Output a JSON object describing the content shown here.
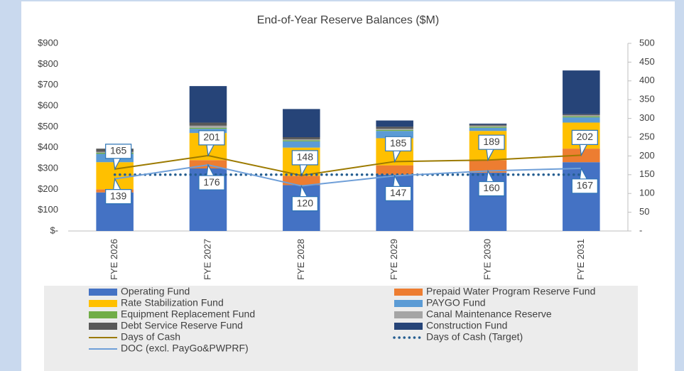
{
  "chart_data": {
    "type": "bar",
    "stacked": true,
    "title": "End-of-Year Reserve Balances ($M)",
    "categories": [
      "FYE 2026",
      "FYE 2027",
      "FYE 2028",
      "FYE 2029",
      "FYE 2030",
      "FYE 2031"
    ],
    "ylim": [
      0,
      900
    ],
    "yticks": [
      {
        "value": 0,
        "label": "$-"
      },
      {
        "value": 100,
        "label": "$100"
      },
      {
        "value": 200,
        "label": "$200"
      },
      {
        "value": 300,
        "label": "$300"
      },
      {
        "value": 400,
        "label": "$400"
      },
      {
        "value": 500,
        "label": "$500"
      },
      {
        "value": 600,
        "label": "$600"
      },
      {
        "value": 700,
        "label": "$700"
      },
      {
        "value": 800,
        "label": "$800"
      },
      {
        "value": 900,
        "label": "$900"
      }
    ],
    "y2lim": [
      0,
      500
    ],
    "y2ticks": [
      {
        "value": 0,
        "label": "-"
      },
      50,
      100,
      150,
      200,
      250,
      300,
      350,
      400,
      450,
      500
    ],
    "grid": false,
    "legend": "bottom",
    "series": [
      {
        "name": "Operating Fund",
        "color": "#4472c4",
        "values": [
          185,
          300,
          220,
          270,
          280,
          330
        ]
      },
      {
        "name": "Prepaid Water Program Reserve Fund",
        "color": "#ed7d31",
        "values": [
          15,
          40,
          45,
          45,
          60,
          65
        ]
      },
      {
        "name": "Rate Stabilization Fund",
        "color": "#ffc000",
        "values": [
          130,
          130,
          135,
          130,
          140,
          125
        ]
      },
      {
        "name": "PAYGO Fund",
        "color": "#5b9bd5",
        "values": [
          40,
          20,
          30,
          35,
          15,
          25
        ]
      },
      {
        "name": "Equipment Replacement Fund",
        "color": "#70ad47",
        "values": [
          5,
          5,
          5,
          5,
          5,
          5
        ]
      },
      {
        "name": "Canal Maintenance Reserve",
        "color": "#a5a5a5",
        "values": [
          5,
          10,
          5,
          5,
          5,
          5
        ]
      },
      {
        "name": "Debt Service Reserve Fund",
        "color": "#595959",
        "values": [
          15,
          15,
          10,
          10,
          5,
          5
        ]
      },
      {
        "name": "Construction Fund",
        "color": "#264478",
        "values": [
          0,
          175,
          135,
          30,
          5,
          210
        ]
      },
      {
        "name": "Days of Cash",
        "type": "line",
        "axis": "y2",
        "color": "#9c7a00",
        "labels": "above",
        "values": [
          165,
          201,
          148,
          185,
          189,
          202
        ]
      },
      {
        "name": "Days of Cash (Target)",
        "type": "line",
        "axis": "y2",
        "color": "#255e91",
        "dotted": true,
        "values": [
          150,
          150,
          150,
          150,
          150,
          150
        ]
      },
      {
        "name": "DOC (excl. PayGo&PWPRF)",
        "type": "line",
        "axis": "y2",
        "color": "#6f9fd8",
        "labels": "below",
        "values": [
          139,
          176,
          120,
          147,
          160,
          167
        ]
      }
    ]
  }
}
